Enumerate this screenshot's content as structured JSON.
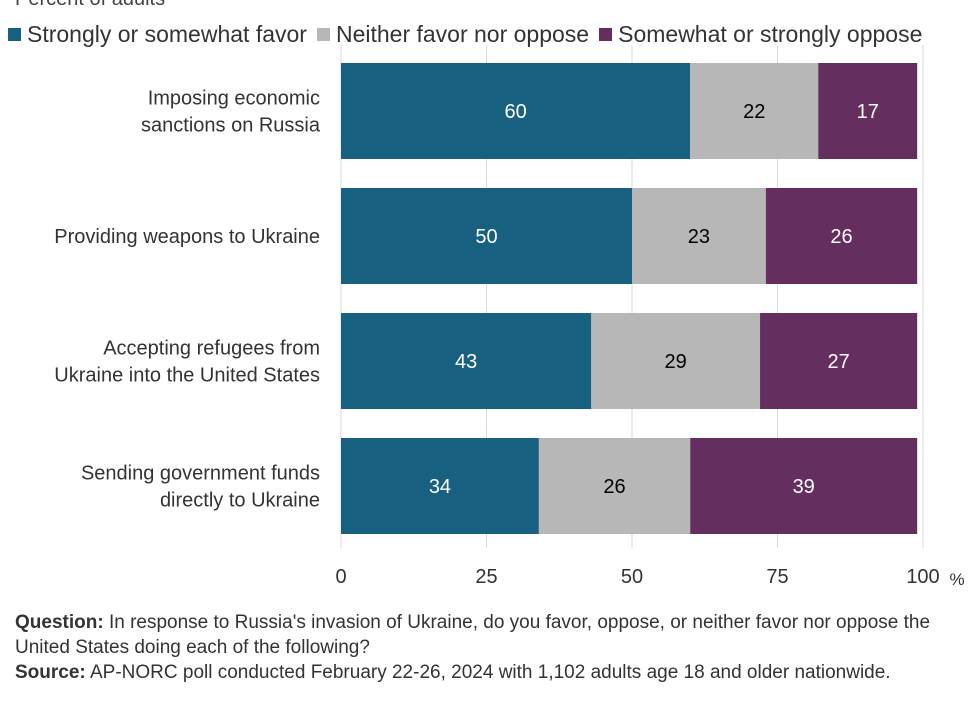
{
  "subtitle": "Percent of adults",
  "legend": [
    {
      "label": "Strongly or somewhat favor",
      "color": "#17607f"
    },
    {
      "label": "Neither favor nor oppose",
      "color": "#b7b7b7"
    },
    {
      "label": "Somewhat or strongly oppose",
      "color": "#642e5f"
    }
  ],
  "chart_data": {
    "type": "bar",
    "orientation": "horizontal",
    "stacked": true,
    "categories": [
      [
        "Imposing economic",
        "sanctions on Russia"
      ],
      [
        "Providing weapons to Ukraine"
      ],
      [
        "Accepting refugees from",
        "Ukraine into the United States"
      ],
      [
        "Sending government funds",
        "directly to Ukraine"
      ]
    ],
    "series": [
      {
        "name": "Strongly or somewhat favor",
        "values": [
          60,
          50,
          43,
          34
        ],
        "color": "#17607f",
        "label_color": "#ffffff"
      },
      {
        "name": "Neither favor nor oppose",
        "values": [
          22,
          23,
          29,
          26
        ],
        "color": "#b7b7b7",
        "label_color": "#000000"
      },
      {
        "name": "Somewhat or strongly oppose",
        "values": [
          17,
          26,
          27,
          39
        ],
        "color": "#642e5f",
        "label_color": "#ffffff"
      }
    ],
    "xlim": [
      0,
      100
    ],
    "xticks": [
      0,
      25,
      50,
      75,
      100
    ],
    "xunit": "%",
    "grid": true
  },
  "footer": {
    "question_label": "Question:",
    "question_text": " In response to Russia's invasion of Ukraine, do you favor, oppose, or neither favor nor oppose the United States doing each of the following?",
    "source_label": "Source:",
    "source_text": " AP-NORC poll conducted February 22-26, 2024 with 1,102 adults age 18 and older nationwide."
  }
}
